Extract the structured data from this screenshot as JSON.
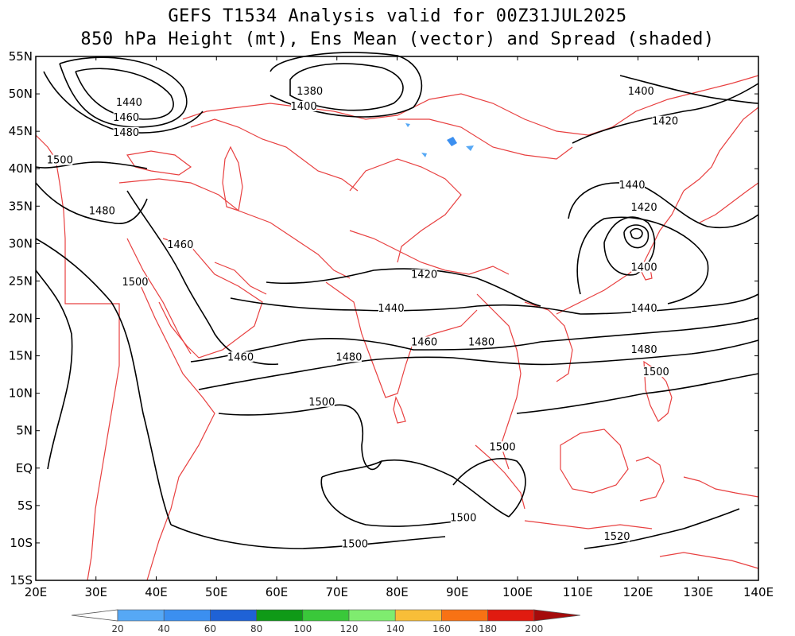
{
  "title": {
    "line1": "GEFS T1534 Analysis valid for 00Z31JUL2025",
    "line2": "850 hPa Height (mt), Ens Mean (vector) and Spread (shaded)"
  },
  "map": {
    "lat_labels": [
      "55N",
      "50N",
      "45N",
      "40N",
      "35N",
      "30N",
      "25N",
      "20N",
      "15N",
      "10N",
      "5N",
      "EQ",
      "5S",
      "10S",
      "15S"
    ],
    "lon_labels": [
      "20E",
      "30E",
      "40E",
      "50E",
      "60E",
      "70E",
      "80E",
      "90E",
      "100E",
      "110E",
      "120E",
      "130E",
      "140E"
    ],
    "border_color": "#e84040",
    "contour_color": "#000000",
    "contour_labels": [
      {
        "text": "1440",
        "lon": 35.5,
        "lat": 48.5
      },
      {
        "text": "1460",
        "lon": 35.0,
        "lat": 46.5
      },
      {
        "text": "1480",
        "lon": 35.0,
        "lat": 44.5
      },
      {
        "text": "1500",
        "lon": 24.0,
        "lat": 40.8
      },
      {
        "text": "1480",
        "lon": 31.0,
        "lat": 34.0
      },
      {
        "text": "1460",
        "lon": 44.0,
        "lat": 29.5
      },
      {
        "text": "1500",
        "lon": 36.5,
        "lat": 24.5
      },
      {
        "text": "1380",
        "lon": 65.5,
        "lat": 50.0
      },
      {
        "text": "1400",
        "lon": 64.5,
        "lat": 48.0
      },
      {
        "text": "1400",
        "lon": 120.5,
        "lat": 50.0
      },
      {
        "text": "1420",
        "lon": 124.5,
        "lat": 46.0
      },
      {
        "text": "1440",
        "lon": 119.0,
        "lat": 37.5
      },
      {
        "text": "1420",
        "lon": 121.0,
        "lat": 34.5
      },
      {
        "text": "1400",
        "lon": 121.0,
        "lat": 26.5
      },
      {
        "text": "1420",
        "lon": 84.5,
        "lat": 25.5
      },
      {
        "text": "1440",
        "lon": 79.0,
        "lat": 21.0
      },
      {
        "text": "1460",
        "lon": 84.5,
        "lat": 16.5
      },
      {
        "text": "1480",
        "lon": 94.0,
        "lat": 16.5
      },
      {
        "text": "1460",
        "lon": 54.0,
        "lat": 14.5
      },
      {
        "text": "1480",
        "lon": 72.0,
        "lat": 14.5
      },
      {
        "text": "1440",
        "lon": 121.0,
        "lat": 21.0
      },
      {
        "text": "1480",
        "lon": 121.0,
        "lat": 15.5
      },
      {
        "text": "1500",
        "lon": 123.0,
        "lat": 12.5
      },
      {
        "text": "1500",
        "lon": 67.5,
        "lat": 8.5
      },
      {
        "text": "1500",
        "lon": 97.5,
        "lat": 2.5
      },
      {
        "text": "1500",
        "lon": 91.0,
        "lat": -7.0
      },
      {
        "text": "1500",
        "lon": 73.0,
        "lat": -10.5
      },
      {
        "text": "1520",
        "lon": 116.5,
        "lat": -9.5
      }
    ]
  },
  "colorbar": {
    "ticks": [
      "20",
      "40",
      "60",
      "80",
      "100",
      "120",
      "140",
      "160",
      "180",
      "200"
    ],
    "colors": [
      "#ffffff",
      "#56a8f5",
      "#3b8ff0",
      "#1f62d6",
      "#0f9a17",
      "#3ac83a",
      "#7fec6f",
      "#f8be38",
      "#f87214",
      "#e01b10",
      "#a50b0b"
    ]
  }
}
